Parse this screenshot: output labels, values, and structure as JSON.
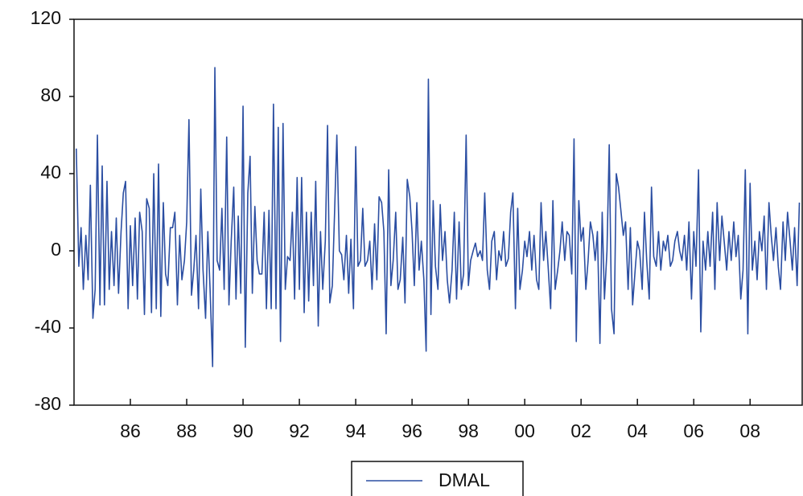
{
  "chart_data": {
    "type": "line",
    "xlim": [
      1984,
      2009.85
    ],
    "ylim": [
      -80,
      120
    ],
    "yticks": [
      -80,
      -40,
      0,
      40,
      80,
      120
    ],
    "xticks": [
      {
        "value": 1986,
        "label": "86"
      },
      {
        "value": 1988,
        "label": "88"
      },
      {
        "value": 1990,
        "label": "90"
      },
      {
        "value": 1992,
        "label": "92"
      },
      {
        "value": 1994,
        "label": "94"
      },
      {
        "value": 1996,
        "label": "96"
      },
      {
        "value": 1998,
        "label": "98"
      },
      {
        "value": 2000,
        "label": "00"
      },
      {
        "value": 2002,
        "label": "02"
      },
      {
        "value": 2004,
        "label": "04"
      },
      {
        "value": 2006,
        "label": "06"
      },
      {
        "value": 2008,
        "label": "08"
      }
    ],
    "x": [
      1984.08,
      1984.17,
      1984.25,
      1984.33,
      1984.42,
      1984.5,
      1984.58,
      1984.67,
      1984.75,
      1984.83,
      1984.92,
      1985,
      1985.08,
      1985.17,
      1985.25,
      1985.33,
      1985.42,
      1985.5,
      1985.58,
      1985.67,
      1985.75,
      1985.83,
      1985.92,
      1986,
      1986.08,
      1986.17,
      1986.25,
      1986.33,
      1986.42,
      1986.5,
      1986.58,
      1986.67,
      1986.75,
      1986.83,
      1986.92,
      1987,
      1987.08,
      1987.17,
      1987.25,
      1987.33,
      1987.42,
      1987.5,
      1987.58,
      1987.67,
      1987.75,
      1987.83,
      1987.92,
      1988,
      1988.08,
      1988.17,
      1988.25,
      1988.33,
      1988.42,
      1988.5,
      1988.58,
      1988.67,
      1988.75,
      1988.83,
      1988.92,
      1989,
      1989.08,
      1989.17,
      1989.25,
      1989.33,
      1989.42,
      1989.5,
      1989.58,
      1989.67,
      1989.75,
      1989.83,
      1989.92,
      1990,
      1990.08,
      1990.17,
      1990.25,
      1990.33,
      1990.42,
      1990.5,
      1990.58,
      1990.67,
      1990.75,
      1990.83,
      1990.92,
      1991,
      1991.08,
      1991.17,
      1991.25,
      1991.33,
      1991.42,
      1991.5,
      1991.58,
      1991.67,
      1991.75,
      1991.83,
      1991.92,
      1992,
      1992.08,
      1992.17,
      1992.25,
      1992.33,
      1992.42,
      1992.5,
      1992.58,
      1992.67,
      1992.75,
      1992.83,
      1992.92,
      1993,
      1993.08,
      1993.17,
      1993.25,
      1993.33,
      1993.42,
      1993.5,
      1993.58,
      1993.67,
      1993.75,
      1993.83,
      1993.92,
      1994,
      1994.08,
      1994.17,
      1994.25,
      1994.33,
      1994.42,
      1994.5,
      1994.58,
      1994.67,
      1994.75,
      1994.83,
      1994.92,
      1995,
      1995.08,
      1995.17,
      1995.25,
      1995.33,
      1995.42,
      1995.5,
      1995.58,
      1995.67,
      1995.75,
      1995.83,
      1995.92,
      1996,
      1996.08,
      1996.17,
      1996.25,
      1996.33,
      1996.42,
      1996.5,
      1996.58,
      1996.67,
      1996.75,
      1996.83,
      1996.92,
      1997,
      1997.08,
      1997.17,
      1997.25,
      1997.33,
      1997.42,
      1997.5,
      1997.58,
      1997.67,
      1997.75,
      1997.83,
      1997.92,
      1998,
      1998.08,
      1998.17,
      1998.25,
      1998.33,
      1998.42,
      1998.5,
      1998.58,
      1998.67,
      1998.75,
      1998.83,
      1998.92,
      1999,
      1999.08,
      1999.17,
      1999.25,
      1999.33,
      1999.42,
      1999.5,
      1999.58,
      1999.67,
      1999.75,
      1999.83,
      1999.92,
      2000,
      2000.08,
      2000.17,
      2000.25,
      2000.33,
      2000.42,
      2000.5,
      2000.58,
      2000.67,
      2000.75,
      2000.83,
      2000.92,
      2001,
      2001.08,
      2001.17,
      2001.25,
      2001.33,
      2001.42,
      2001.5,
      2001.58,
      2001.67,
      2001.75,
      2001.83,
      2001.92,
      2002,
      2002.08,
      2002.17,
      2002.25,
      2002.33,
      2002.42,
      2002.5,
      2002.58,
      2002.67,
      2002.75,
      2002.83,
      2002.92,
      2003,
      2003.08,
      2003.17,
      2003.25,
      2003.33,
      2003.42,
      2003.5,
      2003.58,
      2003.67,
      2003.75,
      2003.83,
      2003.92,
      2004,
      2004.08,
      2004.17,
      2004.25,
      2004.33,
      2004.42,
      2004.5,
      2004.58,
      2004.67,
      2004.75,
      2004.83,
      2004.92,
      2005,
      2005.08,
      2005.17,
      2005.25,
      2005.33,
      2005.42,
      2005.5,
      2005.58,
      2005.67,
      2005.75,
      2005.83,
      2005.92,
      2006,
      2006.08,
      2006.17,
      2006.25,
      2006.33,
      2006.42,
      2006.5,
      2006.58,
      2006.67,
      2006.75,
      2006.83,
      2006.92,
      2007,
      2007.08,
      2007.17,
      2007.25,
      2007.33,
      2007.42,
      2007.5,
      2007.58,
      2007.67,
      2007.75,
      2007.83,
      2007.92,
      2008,
      2008.08,
      2008.17,
      2008.25,
      2008.33,
      2008.42,
      2008.5,
      2008.58,
      2008.67,
      2008.75,
      2008.83,
      2008.92,
      2009,
      2009.08,
      2009.17,
      2009.25,
      2009.33,
      2009.42,
      2009.5,
      2009.58,
      2009.67,
      2009.75
    ],
    "series": [
      {
        "name": "DMAL",
        "color": "#2b4ea2",
        "values": [
          53,
          -8,
          12,
          -20,
          8,
          -15,
          34,
          -35,
          -20,
          60,
          -28,
          44,
          -28,
          36,
          -20,
          10,
          -18,
          17,
          -22,
          10,
          30,
          36,
          -30,
          13,
          -18,
          17,
          -25,
          20,
          10,
          -33,
          27,
          22,
          -32,
          40,
          -30,
          45,
          -34,
          25,
          -12,
          -18,
          12,
          12,
          20,
          -28,
          8,
          -15,
          -5,
          15,
          68,
          -23,
          -10,
          8,
          -30,
          32,
          -10,
          -35,
          10,
          -20,
          -60,
          95,
          -5,
          -10,
          22,
          -20,
          59,
          -28,
          5,
          33,
          -25,
          18,
          -22,
          75,
          -50,
          30,
          49,
          -22,
          23,
          -5,
          -12,
          -12,
          20,
          -30,
          21,
          -30,
          76,
          -30,
          64,
          -47,
          66,
          -20,
          -3,
          -5,
          20,
          -25,
          38,
          -20,
          38,
          -32,
          20,
          -26,
          20,
          -18,
          36,
          -39,
          10,
          -20,
          5,
          65,
          -27,
          -18,
          20,
          60,
          0,
          -2,
          -15,
          8,
          -22,
          6,
          -30,
          54,
          -8,
          -5,
          22,
          -8,
          -5,
          5,
          -20,
          14,
          -15,
          28,
          25,
          10,
          -43,
          42,
          -18,
          -5,
          20,
          -20,
          -15,
          7,
          -27,
          37,
          28,
          10,
          -18,
          25,
          -10,
          5,
          -15,
          -52,
          89,
          -33,
          26,
          -8,
          -20,
          24,
          -5,
          10,
          -15,
          -27,
          -10,
          20,
          -25,
          15,
          -20,
          -12,
          60,
          -18,
          -5,
          0,
          4,
          -3,
          0,
          -5,
          30,
          -10,
          -20,
          5,
          10,
          -15,
          0,
          -5,
          10,
          -8,
          -4,
          20,
          30,
          -30,
          22,
          -20,
          -10,
          5,
          -3,
          10,
          -10,
          8,
          -15,
          -20,
          25,
          -5,
          10,
          -8,
          -30,
          26,
          -20,
          -10,
          0,
          15,
          -5,
          10,
          8,
          -12,
          58,
          -47,
          26,
          5,
          12,
          -20,
          -5,
          15,
          8,
          -5,
          10,
          -48,
          20,
          -25,
          0,
          55,
          -30,
          -43,
          40,
          33,
          20,
          8,
          15,
          -20,
          12,
          -28,
          -10,
          5,
          0,
          -20,
          20,
          -5,
          -25,
          33,
          -3,
          -8,
          10,
          -10,
          5,
          0,
          8,
          -8,
          -5,
          5,
          10,
          0,
          -5,
          8,
          -10,
          15,
          -25,
          10,
          -8,
          42,
          -42,
          5,
          -10,
          10,
          -8,
          20,
          -20,
          25,
          -5,
          18,
          5,
          -10,
          10,
          -5,
          15,
          -3,
          8,
          -25,
          -10,
          42,
          -43,
          35,
          -10,
          5,
          -15,
          10,
          0,
          18,
          -20,
          25,
          8,
          -5,
          12,
          -8,
          -20,
          15,
          -5,
          20,
          5,
          -10,
          12,
          -18,
          25
        ]
      }
    ]
  }
}
